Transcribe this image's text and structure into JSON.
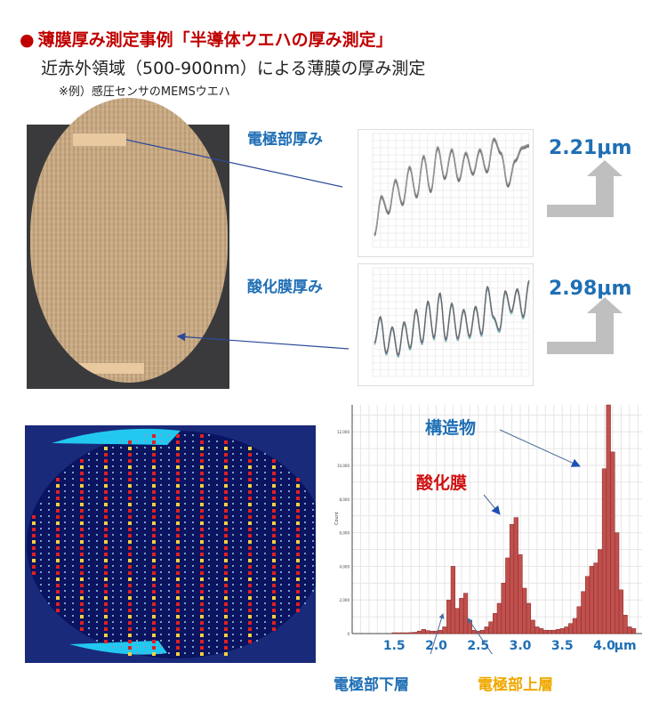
{
  "header": {
    "bullet": "●",
    "title": "薄膜厚み測定事例「半導体ウエハの厚み測定」",
    "subtitle": "近赤外領域（500-900nm）による薄膜の厚み測定",
    "note": "※例）感圧センサのMEMSウエハ"
  },
  "labels": {
    "electrode_thickness": "電極部厚み",
    "oxide_thickness": "酸化膜厚み",
    "electrode_value": "2.21μm",
    "oxide_value": "2.98μm",
    "structure": "構造物",
    "oxide": "酸化膜",
    "electrode_lower": "電極部下層",
    "electrode_upper": "電極部上層"
  },
  "colors": {
    "accent_red": "#c00000",
    "accent_blue": "#1f6fb5",
    "accent_orange": "#f0a800",
    "bar": "#c0504d"
  },
  "chart_data": [
    {
      "type": "bar",
      "title": "",
      "xlabel": "μm",
      "ylabel": "Count",
      "xlim": [
        1.0,
        4.45
      ],
      "ylim": [
        0,
        13600
      ],
      "grid": true,
      "x_ticks": [
        "1.5",
        "2.0",
        "2.5",
        "3.0",
        "3.5",
        "4.0"
      ],
      "y_ticks": [
        "0",
        "2,000",
        "4,000",
        "6,000",
        "8,000",
        "10,000",
        "12,000"
      ],
      "bin_width": 0.05,
      "x": [
        1.5,
        1.55,
        1.6,
        1.65,
        1.7,
        1.75,
        1.8,
        1.85,
        1.9,
        1.95,
        2.0,
        2.05,
        2.1,
        2.15,
        2.2,
        2.25,
        2.3,
        2.35,
        2.4,
        2.45,
        2.5,
        2.55,
        2.6,
        2.65,
        2.7,
        2.75,
        2.8,
        2.85,
        2.9,
        2.95,
        3.0,
        3.05,
        3.1,
        3.15,
        3.2,
        3.25,
        3.3,
        3.35,
        3.4,
        3.45,
        3.5,
        3.55,
        3.6,
        3.65,
        3.7,
        3.75,
        3.8,
        3.85,
        3.9,
        3.95,
        4.0,
        4.05,
        4.1,
        4.15,
        4.2,
        4.25,
        4.3,
        4.35
      ],
      "values": [
        50,
        50,
        50,
        50,
        60,
        80,
        150,
        250,
        180,
        150,
        150,
        200,
        400,
        2000,
        4000,
        1500,
        2100,
        2400,
        800,
        200,
        150,
        200,
        400,
        700,
        1200,
        1800,
        3000,
        4500,
        6500,
        6900,
        4700,
        2700,
        1800,
        800,
        400,
        300,
        200,
        200,
        200,
        250,
        300,
        400,
        600,
        900,
        1600,
        2500,
        3400,
        4000,
        4200,
        5000,
        9800,
        13600,
        10800,
        6000,
        2600,
        1100,
        400,
        300
      ]
    },
    {
      "type": "line",
      "title": "",
      "ylabel": "",
      "xlabel": "",
      "grid": true,
      "series": [
        {
          "values": [
            0.1,
            0.45,
            0.3,
            0.6,
            0.38,
            0.72,
            0.45,
            0.82,
            0.5,
            0.9,
            0.62,
            0.88,
            0.6,
            0.85,
            0.66,
            0.88,
            0.68,
            0.98,
            0.85,
            0.55,
            0.78,
            0.9,
            0.92
          ]
        }
      ]
    },
    {
      "type": "line",
      "title": "",
      "ylabel": "",
      "xlabel": "",
      "grid": true,
      "series": [
        {
          "values": [
            0.3,
            0.55,
            0.2,
            0.45,
            0.18,
            0.5,
            0.25,
            0.62,
            0.3,
            0.7,
            0.35,
            0.78,
            0.33,
            0.68,
            0.34,
            0.62,
            0.36,
            0.65,
            0.38,
            0.84,
            0.55,
            0.42,
            0.8,
            0.6,
            0.82,
            0.55,
            0.9
          ]
        }
      ]
    }
  ]
}
